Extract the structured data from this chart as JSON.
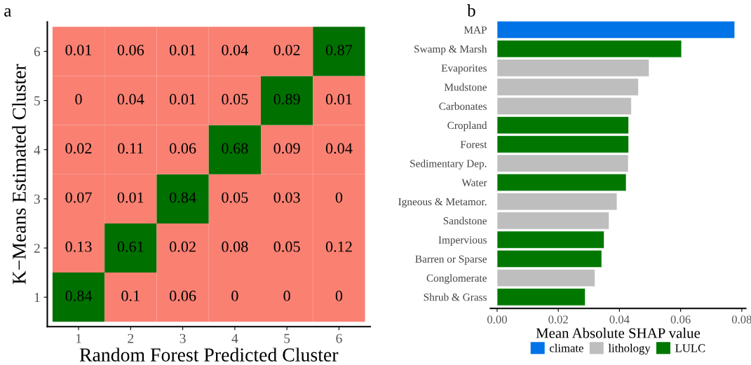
{
  "chart_data": [
    {
      "type": "heatmap",
      "xlabel": "Random Forest Predicted Cluster",
      "ylabel": "K−Means Estimated Cluster",
      "annotations": [
        "a"
      ],
      "categories": [
        "1",
        "2",
        "3",
        "4",
        "5",
        "6"
      ],
      "y_categories": [
        "6",
        "5",
        "4",
        "3",
        "2",
        "1"
      ],
      "cells": [
        [
          0.01,
          0.06,
          0.01,
          0.04,
          0.02,
          0.87
        ],
        [
          0,
          0.04,
          0.01,
          0.05,
          0.89,
          0.01
        ],
        [
          0.02,
          0.11,
          0.06,
          0.68,
          0.09,
          0.04
        ],
        [
          0.07,
          0.01,
          0.84,
          0.05,
          0.03,
          0
        ],
        [
          0.13,
          0.61,
          0.02,
          0.08,
          0.05,
          0.12
        ],
        [
          0.84,
          0.1,
          0.06,
          0,
          0,
          0
        ]
      ],
      "colors": [
        "#fa8072",
        "#007000"
      ],
      "data_labels": true
    },
    {
      "type": "bar",
      "orientation": "horizontal",
      "xlabel": "Mean Absolute SHAP value",
      "annotations": [
        "b"
      ],
      "categories": [
        "MAP",
        "Swamp & Marsh",
        "Evaporites",
        "Mudstone",
        "Carbonates",
        "Cropland",
        "Forest",
        "Sedimentary Dep.",
        "Water",
        "Igneous & Metamor.",
        "Sandstone",
        "Impervious",
        "Barren or Sparse",
        "Conglomerate",
        "Shrub & Grass"
      ],
      "series": [
        {
          "name": "climate",
          "color": "#0073e6",
          "values": [
            0.0777,
            null,
            null,
            null,
            null,
            null,
            null,
            null,
            null,
            null,
            null,
            null,
            null,
            null,
            null
          ]
        },
        {
          "name": "lithology",
          "color": "#bebebe",
          "values": [
            null,
            null,
            0.0497,
            0.0462,
            0.0439,
            null,
            null,
            0.0429,
            null,
            0.0392,
            0.0366,
            null,
            null,
            0.032,
            null
          ]
        },
        {
          "name": "LULC",
          "color": "#007800",
          "values": [
            null,
            0.0603,
            null,
            null,
            null,
            0.043,
            0.043,
            null,
            0.0422,
            null,
            null,
            0.035,
            0.0342,
            null,
            0.0288
          ]
        }
      ],
      "xlim": [
        -0.0022,
        0.0813
      ],
      "xticks": [
        {
          "value": 0,
          "label": "0.00"
        },
        {
          "value": 0.02,
          "label": "0.02"
        },
        {
          "value": 0.04,
          "label": "0.04"
        },
        {
          "value": 0.06,
          "label": "0.06"
        },
        {
          "value": 0.08,
          "label": "0.08"
        }
      ],
      "legend": "bottom",
      "grid": false
    }
  ]
}
